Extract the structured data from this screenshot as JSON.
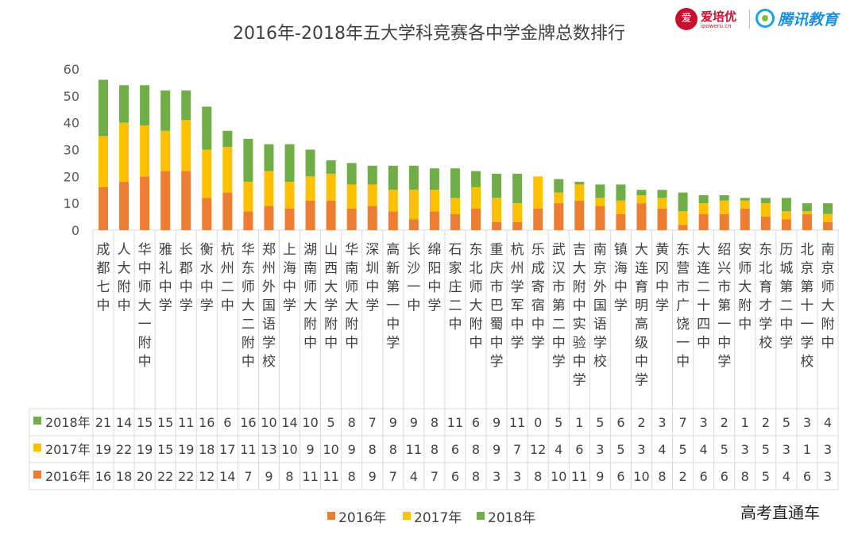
{
  "title": "2016年-2018年五大学科竞赛各中学金牌总数排行",
  "brand": {
    "ipoweru_name": "爱培优",
    "ipoweru_url": "ipoweru.cn",
    "ipoweru_mark": "爱",
    "tencent_name": "腾讯教育"
  },
  "watermark": "高考直通车",
  "colors": {
    "s2016": "#ED7D31",
    "s2017": "#FFC000",
    "s2018": "#70AD47",
    "grid": "#d9d9d9",
    "axis_text": "#595959"
  },
  "chart_data": {
    "type": "bar",
    "stacked": true,
    "title": "2016年-2018年五大学科竞赛各中学金牌总数排行",
    "ylim": [
      0,
      60
    ],
    "yticks": [
      "0",
      "10",
      "20",
      "30",
      "40",
      "50",
      "60"
    ],
    "grid": false,
    "legend": "bottom",
    "data_table": true,
    "categories": [
      "成都七中",
      "人大附中",
      "华中师大一附中",
      "雅礼中学",
      "长郡中学",
      "衡水中学",
      "杭州二中",
      "华东师大二附中",
      "郑州外国语学校",
      "上海中学",
      "湖南师大附中",
      "山西大学附中",
      "华南师大附中",
      "深圳中学",
      "高新第一中学",
      "长沙一中",
      "绵阳中学",
      "石家庄二中",
      "东北师大附中",
      "重庆市巴蜀中学",
      "杭州学军中学",
      "乐成寄宿中学",
      "武汉市第二中学",
      "吉大附中实验中学",
      "南京外国语学校",
      "镇海中学",
      "大连育明高级中学",
      "黄冈中学",
      "东营市广饶一中",
      "大连二十四中",
      "绍兴市第一中学",
      "安师大附中",
      "东北育才学校",
      "历城第二中学",
      "北京第十一学校",
      "南京师大附中"
    ],
    "series": [
      {
        "name": "2016年",
        "values": [
          16,
          18,
          20,
          22,
          22,
          12,
          14,
          7,
          9,
          8,
          11,
          11,
          8,
          9,
          7,
          4,
          7,
          6,
          8,
          3,
          3,
          8,
          10,
          11,
          9,
          6,
          10,
          8,
          2,
          6,
          6,
          8,
          5,
          4,
          6,
          3
        ]
      },
      {
        "name": "2017年",
        "values": [
          19,
          22,
          19,
          15,
          19,
          18,
          17,
          11,
          13,
          10,
          9,
          10,
          9,
          8,
          8,
          11,
          8,
          6,
          8,
          9,
          7,
          12,
          4,
          6,
          3,
          5,
          3,
          4,
          5,
          4,
          5,
          3,
          5,
          3,
          1,
          3
        ]
      },
      {
        "name": "2018年",
        "values": [
          21,
          14,
          15,
          15,
          11,
          16,
          6,
          16,
          10,
          14,
          10,
          5,
          8,
          7,
          9,
          9,
          8,
          11,
          6,
          9,
          11,
          0,
          5,
          1,
          5,
          6,
          2,
          3,
          7,
          3,
          2,
          1,
          2,
          5,
          3,
          4
        ]
      }
    ]
  }
}
